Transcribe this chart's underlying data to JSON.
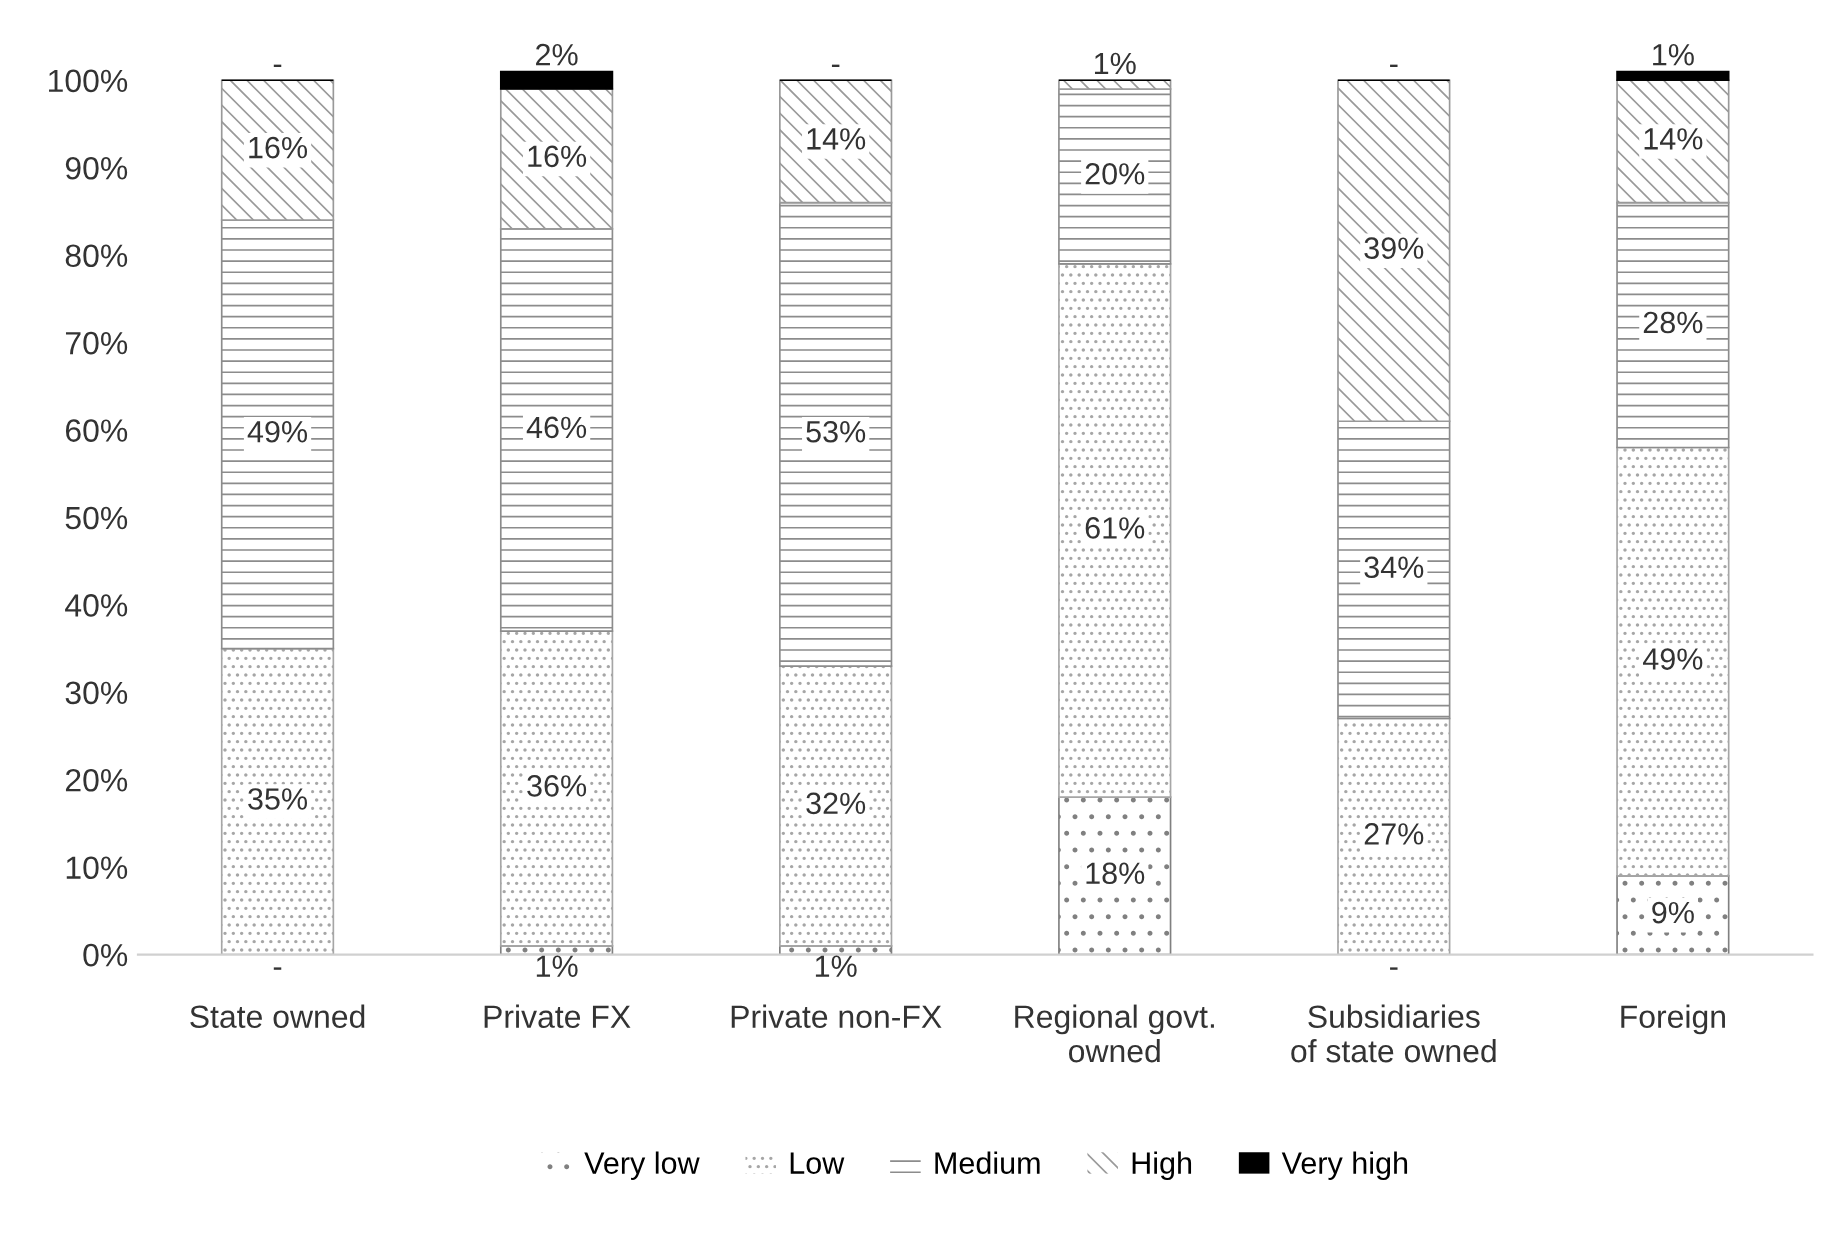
{
  "chart_data": {
    "type": "bar",
    "stacked": true,
    "categories": [
      "State owned",
      "Private FX",
      "Private non-FX",
      "Regional govt. owned",
      "Subsidiaries of state owned",
      "Foreign"
    ],
    "series": [
      {
        "name": "Very low",
        "color": "#808080",
        "values": [
          0,
          1,
          1,
          18,
          0,
          9
        ],
        "value_labels": [
          "-",
          "1%",
          "1%",
          "18%",
          "-",
          "9%"
        ]
      },
      {
        "name": "Low",
        "color": "#a6a6a6",
        "values": [
          35,
          36,
          32,
          61,
          27,
          49
        ],
        "value_labels": [
          "35%",
          "36%",
          "32%",
          "61%",
          "27%",
          "49%"
        ]
      },
      {
        "name": "Medium",
        "color": "#8c8c8c",
        "values": [
          49,
          46,
          53,
          20,
          34,
          28
        ],
        "value_labels": [
          "49%",
          "46%",
          "53%",
          "20%",
          "34%",
          "28%"
        ]
      },
      {
        "name": "High",
        "color": "#999999",
        "values": [
          16,
          16,
          14,
          1,
          39,
          14
        ],
        "value_labels": [
          "16%",
          "16%",
          "14%",
          "1%",
          "39%",
          "14%"
        ]
      },
      {
        "name": "Very high",
        "color": "#000000",
        "values": [
          0,
          2,
          0,
          0,
          0,
          1
        ],
        "value_labels": [
          "-",
          "2%",
          "-",
          null,
          "-",
          "1%"
        ]
      }
    ],
    "ylim": [
      0,
      102
    ],
    "yticks": [
      {
        "value": 0,
        "label": "0%"
      },
      {
        "value": 10,
        "label": "10%"
      },
      {
        "value": 20,
        "label": "20%"
      },
      {
        "value": 30,
        "label": "30%"
      },
      {
        "value": 40,
        "label": "40%"
      },
      {
        "value": 50,
        "label": "50%"
      },
      {
        "value": 60,
        "label": "60%"
      },
      {
        "value": 70,
        "label": "70%"
      },
      {
        "value": 80,
        "label": "80%"
      },
      {
        "value": 90,
        "label": "90%"
      },
      {
        "value": 100,
        "label": "100%"
      }
    ],
    "grid": false,
    "legend": "bottom"
  }
}
